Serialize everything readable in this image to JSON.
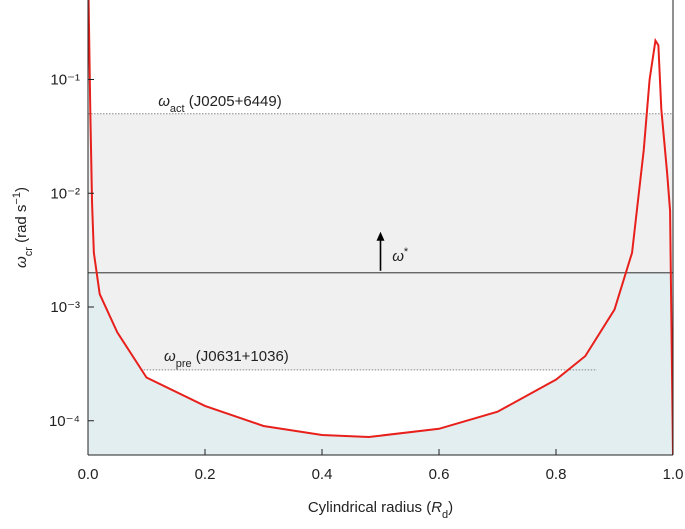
{
  "chart_data": {
    "type": "line",
    "log_y": true,
    "x_label": {
      "text": "Cylindrical radius (",
      "symbol": "R",
      "sub": "d",
      "close": ")"
    },
    "y_label": {
      "symbol": "ω",
      "sub": "cr",
      "text": " (rad s",
      "sup": "−1",
      "close": ")"
    },
    "x": [
      0.001,
      0.004,
      0.007,
      0.01,
      0.02,
      0.05,
      0.1,
      0.2,
      0.3,
      0.4,
      0.48,
      0.6,
      0.7,
      0.8,
      0.85,
      0.9,
      0.93,
      0.95,
      0.96,
      0.97,
      0.975,
      0.98,
      0.99,
      0.995,
      1.0
    ],
    "series": [
      {
        "color": "#e8201c",
        "values": [
          0.5,
          0.05,
          0.008,
          0.003,
          0.0013,
          0.0006,
          0.00024,
          0.000135,
          9e-05,
          7.5e-05,
          7.2e-05,
          8.5e-05,
          0.00012,
          0.00023,
          0.00037,
          0.00095,
          0.003,
          0.024,
          0.1,
          0.22,
          0.2,
          0.055,
          0.015,
          0.007,
          5e-05
        ]
      }
    ],
    "xlim": [
      0,
      1
    ],
    "ylim": [
      5e-05,
      0.5
    ],
    "xticks": [
      {
        "value": 0,
        "label": "0.0"
      },
      0.2,
      0.4,
      0.6,
      0.8,
      {
        "value": 1,
        "label": "1.0"
      }
    ],
    "yticks": [
      {
        "value": 0.0001,
        "label": "10⁻⁴"
      },
      {
        "value": 0.001,
        "label": "10⁻³"
      },
      {
        "value": 0.01,
        "label": "10⁻²"
      },
      {
        "value": 0.1,
        "label": "10⁻¹"
      }
    ],
    "annotations": {
      "act": {
        "symbol": "ω",
        "sub": "act",
        "text": " (J0205+6449)",
        "value": 0.05
      },
      "star": {
        "symbol": "ω",
        "sup": "*",
        "value": 0.002
      },
      "pre": {
        "symbol": "ω",
        "sub": "pre",
        "text": " (J0631+1036)",
        "value": 0.00028,
        "xrange": [
          0.09,
          0.87
        ]
      }
    }
  }
}
